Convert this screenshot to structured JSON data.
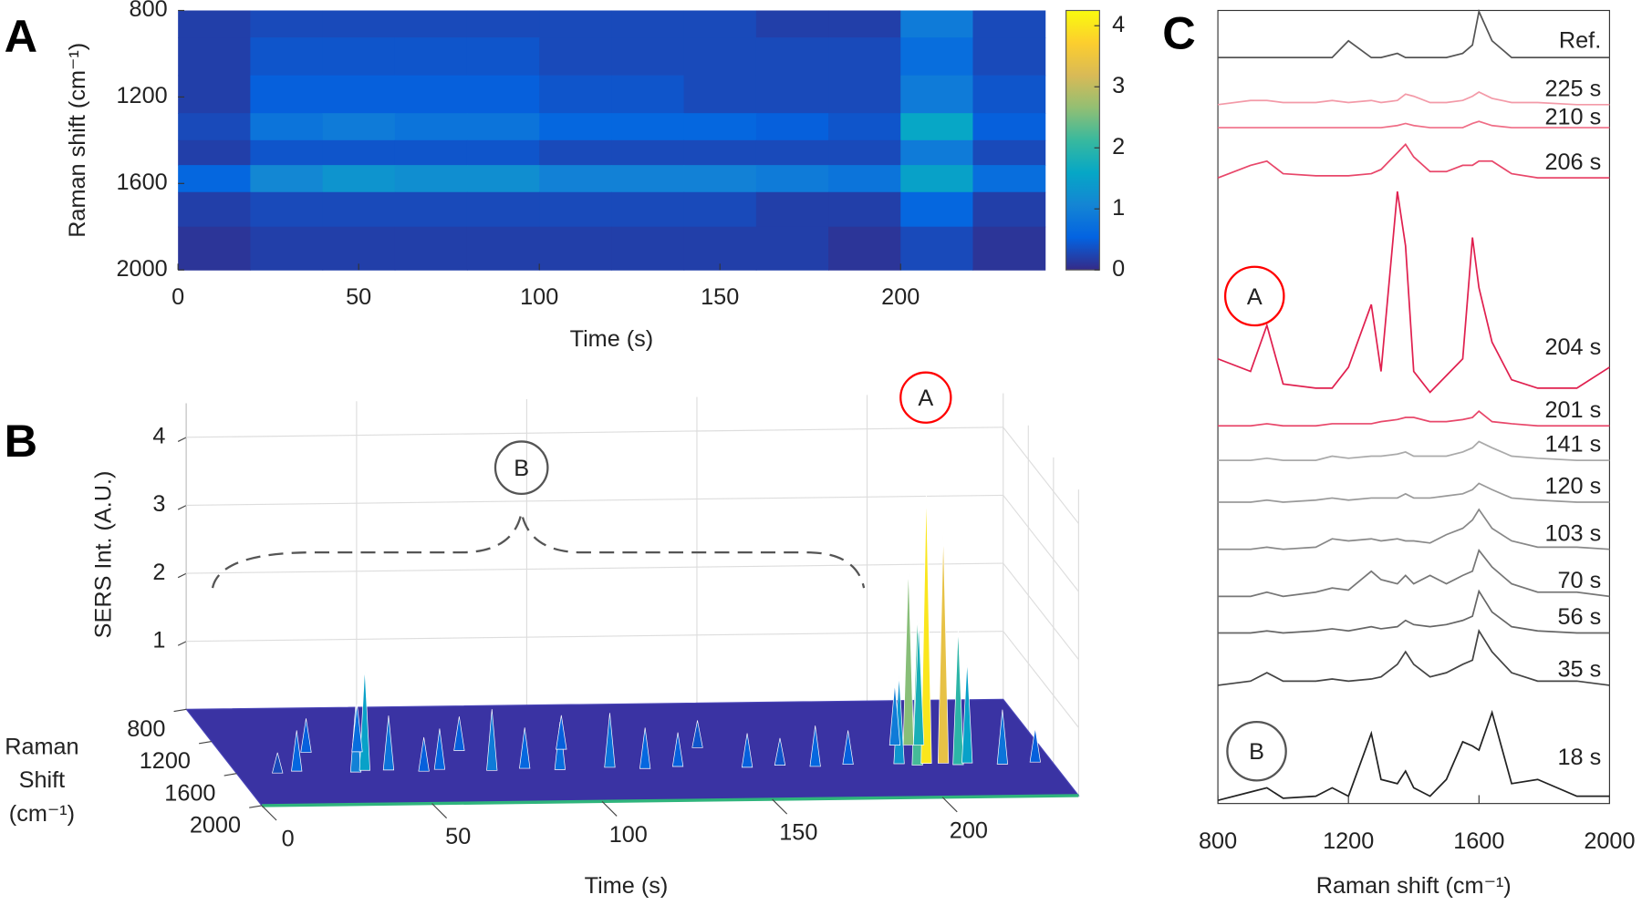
{
  "chart_data": [
    {
      "type": "heatmap",
      "label": "A",
      "xlabel": "Time (s)",
      "ylabel": "Raman shift (cm⁻¹)",
      "x": [
        10,
        30,
        50,
        70,
        90,
        110,
        130,
        150,
        170,
        190,
        210,
        230
      ],
      "y": [
        850,
        1000,
        1200,
        1350,
        1450,
        1580,
        1700,
        1900
      ],
      "z": [
        [
          0.2,
          0.3,
          0.3,
          0.3,
          0.3,
          0.3,
          0.3,
          0.3,
          0.2,
          0.2,
          0.9,
          0.3
        ],
        [
          0.2,
          0.4,
          0.4,
          0.4,
          0.4,
          0.3,
          0.3,
          0.3,
          0.3,
          0.3,
          0.7,
          0.3
        ],
        [
          0.2,
          0.5,
          0.5,
          0.5,
          0.5,
          0.4,
          0.4,
          0.3,
          0.3,
          0.3,
          0.9,
          0.4
        ],
        [
          0.3,
          0.8,
          0.9,
          0.8,
          0.8,
          0.6,
          0.6,
          0.6,
          0.5,
          0.4,
          1.6,
          0.5
        ],
        [
          0.2,
          0.4,
          0.4,
          0.4,
          0.4,
          0.3,
          0.3,
          0.3,
          0.3,
          0.3,
          0.9,
          0.3
        ],
        [
          0.6,
          1.1,
          1.3,
          1.2,
          1.2,
          1.0,
          1.0,
          1.0,
          0.9,
          0.8,
          1.5,
          0.7
        ],
        [
          0.2,
          0.3,
          0.3,
          0.3,
          0.3,
          0.3,
          0.3,
          0.3,
          0.2,
          0.2,
          0.6,
          0.2
        ],
        [
          0.1,
          0.2,
          0.2,
          0.2,
          0.2,
          0.2,
          0.2,
          0.2,
          0.2,
          0.1,
          0.3,
          0.1
        ]
      ],
      "xlim": [
        0,
        240
      ],
      "ylim": [
        800,
        2000
      ],
      "y_inverted": true,
      "xticks": [
        0,
        50,
        100,
        150,
        200
      ],
      "yticks": [
        800,
        1200,
        1600,
        2000
      ],
      "clim": [
        0,
        4.25
      ],
      "cticks": [
        0,
        1,
        2,
        3,
        4
      ],
      "colormap": [
        "#352a87",
        "#0363e1",
        "#1485d4",
        "#06a7c6",
        "#38b99e",
        "#92bf73",
        "#d9ba56",
        "#fcce2e",
        "#f9fb0e"
      ]
    },
    {
      "type": "waterfall3d",
      "label": "B",
      "zlabel": "SERS Int. (A.U.)",
      "xlabel": "Time (s)",
      "ylabel": [
        "Raman",
        "Shift",
        "(cm⁻¹)"
      ],
      "x": [
        12,
        18,
        25,
        35,
        38,
        40,
        45,
        55,
        60,
        70,
        75,
        85,
        95,
        100,
        110,
        120,
        130,
        140,
        150,
        160,
        170,
        180,
        195,
        198,
        200,
        202,
        203,
        205,
        208,
        212,
        215,
        225,
        235
      ],
      "y": [
        1600,
        1580,
        1350,
        1600,
        1580,
        1350,
        1580,
        1600,
        1580,
        1350,
        1600,
        1580,
        1600,
        1350,
        1580,
        1600,
        1580,
        1350,
        1600,
        1580,
        1600,
        1580,
        1580,
        1350,
        1600,
        1350,
        1580,
        1350,
        1580,
        1600,
        1580,
        1600,
        1580
      ],
      "z": [
        0.3,
        0.6,
        0.5,
        1.0,
        1.5,
        0.7,
        0.8,
        0.5,
        0.6,
        0.5,
        0.9,
        0.6,
        0.7,
        0.5,
        0.8,
        0.6,
        0.5,
        0.4,
        0.5,
        0.4,
        0.6,
        0.5,
        1.3,
        0.9,
        2.2,
        2.6,
        4.0,
        1.8,
        3.4,
        2.0,
        1.5,
        0.8,
        0.5
      ],
      "xlim": [
        0,
        240
      ],
      "ylim": [
        800,
        2000
      ],
      "zlim": [
        0,
        4.5
      ],
      "xticks": [
        0,
        50,
        100,
        150,
        200
      ],
      "yticks": [
        800,
        1200,
        1600,
        2000
      ],
      "zticks": [
        1,
        2,
        3,
        4
      ],
      "annotations": [
        "A",
        "B"
      ]
    },
    {
      "type": "spectra",
      "label": "C",
      "xlabel": "Raman shift (cm⁻¹)",
      "x": [
        800,
        900,
        950,
        1000,
        1100,
        1150,
        1200,
        1270,
        1300,
        1350,
        1375,
        1400,
        1450,
        1500,
        1550,
        1580,
        1600,
        1640,
        1700,
        1780,
        1900,
        2000
      ],
      "xlim": [
        800,
        2000
      ],
      "xticks": [
        800,
        1200,
        1600,
        2000
      ],
      "series": [
        {
          "name": "Ref.",
          "color": "#555555",
          "label_color": "#333333",
          "values": [
            0,
            0,
            0,
            0,
            0,
            0,
            0.4,
            0,
            0,
            0.1,
            0,
            0,
            0,
            0,
            0.1,
            0.3,
            1.1,
            0.4,
            0,
            0,
            0,
            0
          ]
        },
        {
          "name": "225 s",
          "color": "#f39aa8",
          "label_color": "#ff0000",
          "values": [
            0,
            0.1,
            0.1,
            0.05,
            0.05,
            0.1,
            0.05,
            0.1,
            0.05,
            0.1,
            0.25,
            0.2,
            0.05,
            0.05,
            0.1,
            0.2,
            0.3,
            0.15,
            0.05,
            0.05,
            0,
            0
          ]
        },
        {
          "name": "210 s",
          "color": "#ef6d86",
          "label_color": "#ff0000",
          "values": [
            0,
            0,
            0,
            0,
            0,
            0,
            0,
            0,
            0,
            0.05,
            0.1,
            0.05,
            0,
            0,
            0,
            0.1,
            0.15,
            0.05,
            0,
            0,
            0,
            0
          ]
        },
        {
          "name": "206 s",
          "color": "#e8476a",
          "label_color": "#ff0000",
          "values": [
            0,
            0.3,
            0.4,
            0.1,
            0.05,
            0.05,
            0.05,
            0.1,
            0.2,
            0.6,
            0.8,
            0.5,
            0.15,
            0.15,
            0.3,
            0.3,
            0.4,
            0.4,
            0.1,
            0,
            0,
            0
          ]
        },
        {
          "name": "204 s",
          "color": "#e0204f",
          "label_color": "#ff0000",
          "values": [
            0.8,
            0.5,
            1.6,
            0.2,
            0.1,
            0.1,
            0.6,
            2.1,
            0.5,
            4.8,
            3.5,
            0.5,
            0,
            0.4,
            0.8,
            3.7,
            2.5,
            1.2,
            0.3,
            0.1,
            0.1,
            0.6
          ]
        },
        {
          "name": "201 s",
          "color": "#e8476a",
          "label_color": "#ff0000",
          "values": [
            0,
            0,
            0.05,
            0,
            0,
            0.05,
            0.05,
            0.05,
            0.1,
            0.15,
            0.2,
            0.2,
            0.1,
            0.1,
            0.15,
            0.2,
            0.35,
            0.1,
            0.05,
            0,
            0,
            0
          ]
        },
        {
          "name": "141 s",
          "color": "#aaaaaa",
          "label_color": "#333333",
          "values": [
            0,
            0,
            0.05,
            0,
            0,
            0.1,
            0.05,
            0.1,
            0.1,
            0.15,
            0.2,
            0.1,
            0.1,
            0.1,
            0.2,
            0.3,
            0.45,
            0.3,
            0.1,
            0.05,
            0,
            0
          ]
        },
        {
          "name": "120 s",
          "color": "#999999",
          "label_color": "#333333",
          "values": [
            0,
            0,
            0.05,
            0,
            0.05,
            0.1,
            0.05,
            0.1,
            0.1,
            0.1,
            0.2,
            0.1,
            0.1,
            0.15,
            0.2,
            0.3,
            0.45,
            0.3,
            0.1,
            0.05,
            0,
            0
          ]
        },
        {
          "name": "103 s",
          "color": "#888888",
          "label_color": "#333333",
          "values": [
            0,
            0,
            0.05,
            0,
            0.05,
            0.25,
            0.2,
            0.25,
            0.2,
            0.25,
            0.2,
            0.2,
            0.15,
            0.35,
            0.5,
            0.7,
            0.95,
            0.5,
            0.2,
            0.05,
            0.05,
            0
          ]
        },
        {
          "name": "70 s",
          "color": "#777777",
          "label_color": "#333333",
          "values": [
            0,
            0,
            0.1,
            0,
            0.1,
            0.2,
            0.15,
            0.6,
            0.4,
            0.3,
            0.5,
            0.3,
            0.5,
            0.3,
            0.5,
            0.6,
            1.1,
            0.7,
            0.3,
            0.1,
            0.1,
            0
          ]
        },
        {
          "name": "56 s",
          "color": "#666666",
          "label_color": "#333333",
          "values": [
            0,
            0,
            0.05,
            0,
            0.05,
            0.1,
            0.05,
            0.15,
            0.1,
            0.15,
            0.3,
            0.2,
            0.15,
            0.2,
            0.3,
            0.4,
            1.0,
            0.5,
            0.15,
            0.05,
            0,
            0
          ]
        },
        {
          "name": "35 s",
          "color": "#444444",
          "label_color": "#333333",
          "values": [
            0,
            0.1,
            0.3,
            0.1,
            0.1,
            0.15,
            0.1,
            0.15,
            0.2,
            0.5,
            0.8,
            0.5,
            0.2,
            0.3,
            0.5,
            0.6,
            1.3,
            0.8,
            0.3,
            0.1,
            0.1,
            0
          ]
        },
        {
          "name": "18 s",
          "color": "#222222",
          "label_color": "#333333",
          "values": [
            0,
            0.2,
            0.3,
            0.05,
            0.1,
            0.3,
            0.1,
            1.6,
            0.5,
            0.4,
            0.7,
            0.3,
            0.1,
            0.5,
            1.4,
            1.3,
            1.2,
            2.1,
            0.4,
            0.5,
            0.1,
            0.1
          ]
        }
      ],
      "annotations": [
        "A",
        "B"
      ]
    }
  ]
}
